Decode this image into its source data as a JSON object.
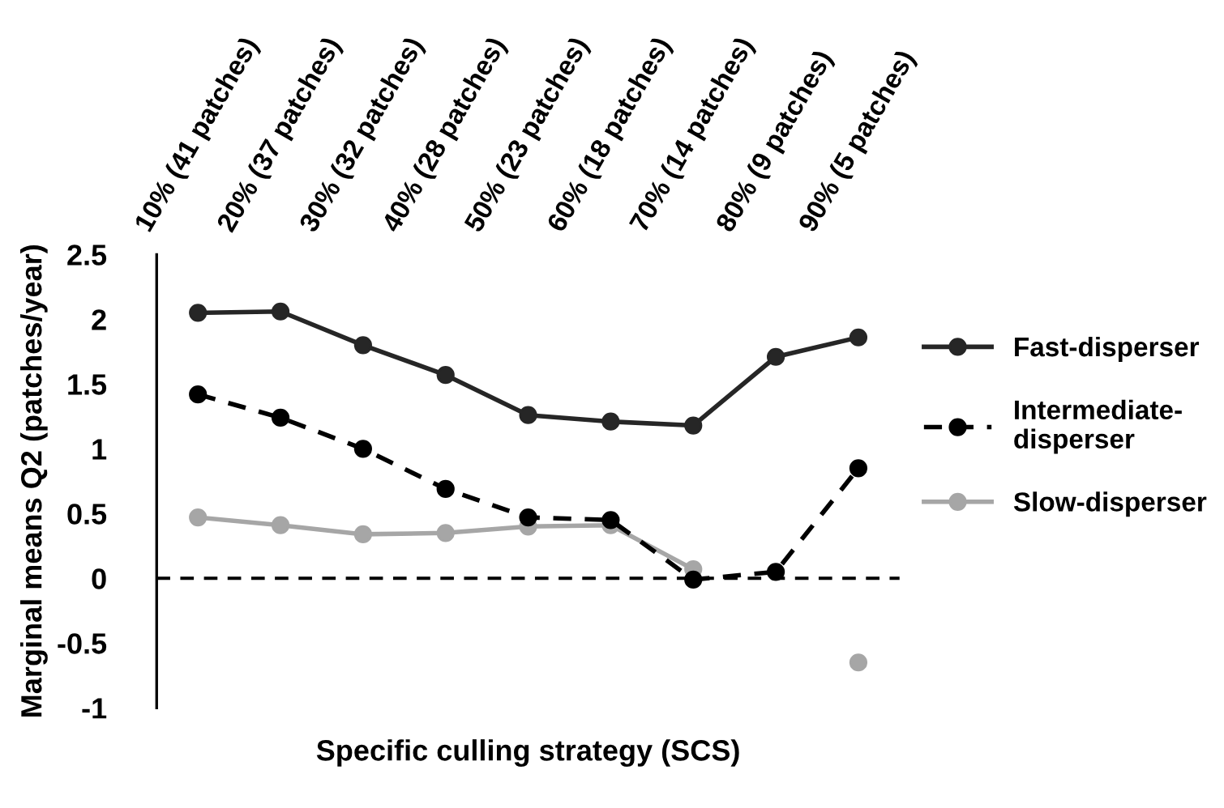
{
  "chart_data": {
    "type": "line",
    "xlabel": "Specific culling strategy (SCS)",
    "ylabel": "Marginal means Q2 (patches/year)",
    "categories": [
      "10% (41 patches)",
      "20% (37 patches)",
      "30% (32 patches)",
      "40% (28 patches)",
      "50% (23 patches)",
      "60% (18 patches)",
      "70% (14 patches)",
      "80% (9 patches)",
      "90% (5 patches)"
    ],
    "series": [
      {
        "name": "Fast-disperser",
        "color": "#262626",
        "line_style": "solid",
        "values": [
          2.05,
          2.06,
          1.8,
          1.57,
          1.26,
          1.21,
          1.18,
          1.71,
          1.86
        ]
      },
      {
        "name": "Intermediate-disperser",
        "color": "#000000",
        "line_style": "dashed",
        "values": [
          1.42,
          1.24,
          1.0,
          0.69,
          0.47,
          0.45,
          -0.01,
          0.05,
          0.85
        ]
      },
      {
        "name": "Slow-disperser",
        "color": "#a6a6a6",
        "line_style": "solid",
        "values": [
          0.47,
          0.41,
          0.34,
          0.35,
          0.4,
          0.41,
          0.07,
          null,
          -0.65
        ]
      }
    ],
    "ylim": [
      -1,
      2.5
    ],
    "yticks": [
      {
        "value": -1,
        "label": "-1"
      },
      {
        "value": -0.5,
        "label": "-0.5"
      },
      0,
      0.5,
      1,
      1.5,
      2,
      2.5
    ],
    "ref_lines": [
      {
        "axis": "y",
        "value": 0,
        "color": "#000000",
        "line_style": "dashed"
      }
    ],
    "marker": "circle",
    "grid": false,
    "legend": "right"
  }
}
